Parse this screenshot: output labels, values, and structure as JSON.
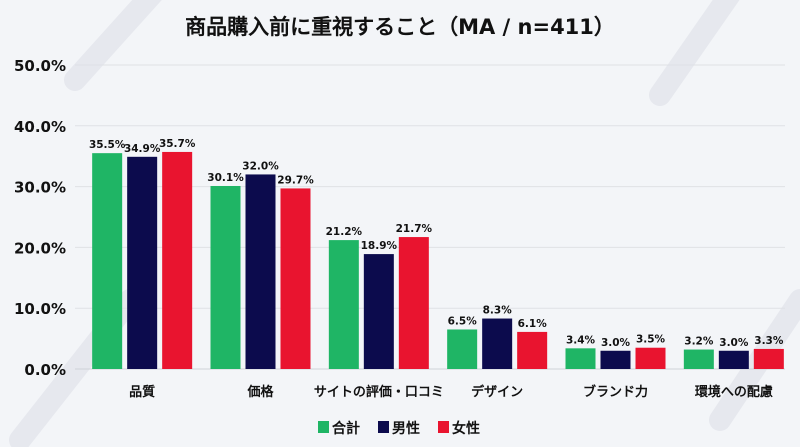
{
  "chart_data": {
    "type": "bar",
    "title": "商品購入前に重視すること（MA / n=411）",
    "xlabel": "",
    "ylabel": "",
    "ylim": [
      0,
      50
    ],
    "yticks": [
      "0.0%",
      "10.0%",
      "20.0%",
      "30.0%",
      "40.0%",
      "50.0%"
    ],
    "grid": true,
    "legend_position": "bottom",
    "categories": [
      "品質",
      "価格",
      "サイトの評価・口コミ",
      "デザイン",
      "ブランド力",
      "環境への配慮"
    ],
    "series": [
      {
        "name": "合計",
        "color": "#1fb565",
        "values": [
          35.5,
          30.1,
          21.2,
          6.5,
          3.4,
          3.2
        ],
        "labels": [
          "35.5%",
          "30.1%",
          "21.2%",
          "6.5%",
          "3.4%",
          "3.2%"
        ]
      },
      {
        "name": "男性",
        "color": "#0c0b4d",
        "values": [
          34.9,
          32.0,
          18.9,
          8.3,
          3.0,
          3.0
        ],
        "labels": [
          "34.9%",
          "32.0%",
          "18.9%",
          "8.3%",
          "3.0%",
          "3.0%"
        ]
      },
      {
        "name": "女性",
        "color": "#e9142f",
        "values": [
          35.7,
          29.7,
          21.7,
          6.1,
          3.5,
          3.3
        ],
        "labels": [
          "35.7%",
          "29.7%",
          "21.7%",
          "6.1%",
          "3.5%",
          "3.3%"
        ]
      }
    ]
  }
}
